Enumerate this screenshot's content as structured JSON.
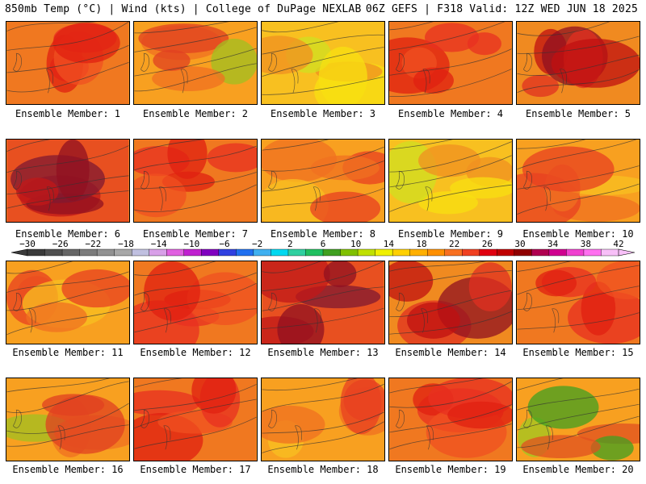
{
  "header": {
    "left_title": "850mb Temp (°C) | Wind (kts) | College of DuPage NEXLAB",
    "right_title": "06Z GEFS | F318 Valid: 12Z WED JUN 18 2025"
  },
  "panels": [
    {
      "label": "Ensemble Member: 1",
      "scheme": "red"
    },
    {
      "label": "Ensemble Member: 2",
      "scheme": "orange-green"
    },
    {
      "label": "Ensemble Member: 3",
      "scheme": "yellow"
    },
    {
      "label": "Ensemble Member: 4",
      "scheme": "red"
    },
    {
      "label": "Ensemble Member: 5",
      "scheme": "red-dark"
    },
    {
      "label": "Ensemble Member: 6",
      "scheme": "darkred"
    },
    {
      "label": "Ensemble Member: 7",
      "scheme": "red"
    },
    {
      "label": "Ensemble Member: 8",
      "scheme": "orange"
    },
    {
      "label": "Ensemble Member: 9",
      "scheme": "yellow"
    },
    {
      "label": "Ensemble Member: 10",
      "scheme": "orange"
    },
    {
      "label": "Ensemble Member: 11",
      "scheme": "orange"
    },
    {
      "label": "Ensemble Member: 12",
      "scheme": "red"
    },
    {
      "label": "Ensemble Member: 13",
      "scheme": "darkred"
    },
    {
      "label": "Ensemble Member: 14",
      "scheme": "red-dark"
    },
    {
      "label": "Ensemble Member: 15",
      "scheme": "red"
    },
    {
      "label": "Ensemble Member: 16",
      "scheme": "orange-green"
    },
    {
      "label": "Ensemble Member: 17",
      "scheme": "red"
    },
    {
      "label": "Ensemble Member: 18",
      "scheme": "orange"
    },
    {
      "label": "Ensemble Member: 19",
      "scheme": "red"
    },
    {
      "label": "Ensemble Member: 20",
      "scheme": "green"
    }
  ],
  "colorbar": {
    "tick_labels": [
      "−30",
      "−26",
      "−22",
      "−18",
      "−14",
      "−10",
      "−6",
      "−2",
      "2",
      "6",
      "10",
      "14",
      "18",
      "22",
      "26",
      "30",
      "34",
      "38",
      "42"
    ],
    "colors": [
      "#3a3a3a",
      "#505050",
      "#666666",
      "#7c7c7c",
      "#929292",
      "#a8a8a8",
      "#c0c0e0",
      "#d8a0e8",
      "#e060e0",
      "#c020d0",
      "#8000c0",
      "#3040e0",
      "#2070f0",
      "#40b0f0",
      "#00d8f0",
      "#30d0a0",
      "#20c060",
      "#40a020",
      "#80c000",
      "#c0e000",
      "#f0f000",
      "#ffd000",
      "#ffb000",
      "#ff9000",
      "#f87020",
      "#f04020",
      "#e00010",
      "#c00000",
      "#900000",
      "#b00050",
      "#d00090",
      "#f040d0",
      "#ff70f0",
      "#f8c0f8"
    ]
  }
}
